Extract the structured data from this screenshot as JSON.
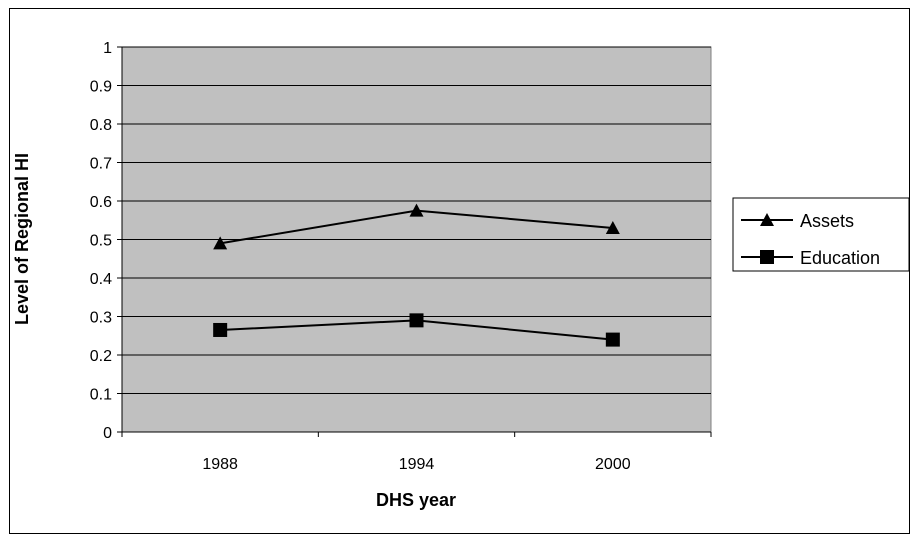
{
  "chart_data": {
    "type": "line",
    "categories": [
      "1988",
      "1994",
      "2000"
    ],
    "series": [
      {
        "name": "Assets",
        "marker": "triangle",
        "values": [
          0.49,
          0.575,
          0.53
        ]
      },
      {
        "name": "Education",
        "marker": "square",
        "values": [
          0.265,
          0.29,
          0.24
        ]
      }
    ],
    "xlabel": "DHS year",
    "ylabel": "Level of Regional HI",
    "ylim": [
      0,
      1
    ],
    "yticks": [
      "0",
      "0.1",
      "0.2",
      "0.3",
      "0.4",
      "0.5",
      "0.6",
      "0.7",
      "0.8",
      "0.9",
      "1"
    ],
    "grid": true,
    "legend": "right",
    "colors": {
      "plot_area": "#c0c0c0",
      "line": "#000000",
      "grid": "#000000"
    }
  }
}
